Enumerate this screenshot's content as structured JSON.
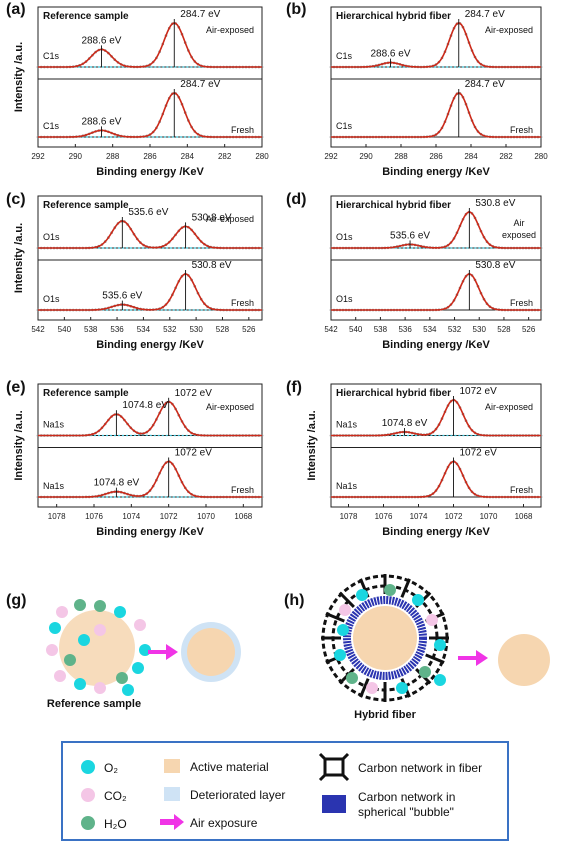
{
  "chart_data": [
    {
      "panel": "(a)",
      "type": "line",
      "title": "Reference sample",
      "xlabel": "Binding energy /KeV",
      "ylabel": "Intensity /a.u.",
      "xlim": [
        292,
        280
      ],
      "x_ticks": [
        "292",
        "290",
        "288",
        "286",
        "284",
        "282",
        "280"
      ],
      "rows": [
        {
          "element": "C1s",
          "condition": "Air-exposed",
          "peaks": [
            {
              "energy": 288.6,
              "label": "288.6 eV",
              "height": 0.4
            },
            {
              "energy": 284.7,
              "label": "284.7 eV",
              "height": 1.0
            }
          ]
        },
        {
          "element": "C1s",
          "condition": "Fresh",
          "peaks": [
            {
              "energy": 288.6,
              "label": "288.6 eV",
              "height": 0.15
            },
            {
              "energy": 284.7,
              "label": "284.7 eV",
              "height": 1.0
            }
          ]
        }
      ]
    },
    {
      "panel": "(b)",
      "type": "line",
      "title": "Hierarchical hybrid fiber",
      "xlabel": "Binding energy /KeV",
      "ylabel": "",
      "xlim": [
        292,
        280
      ],
      "x_ticks": [
        "292",
        "290",
        "288",
        "286",
        "284",
        "282",
        "280"
      ],
      "rows": [
        {
          "element": "C1s",
          "condition": "Air-exposed",
          "peaks": [
            {
              "energy": 288.6,
              "label": "288.6 eV",
              "height": 0.1
            },
            {
              "energy": 284.7,
              "label": "284.7 eV",
              "height": 1.0
            }
          ]
        },
        {
          "element": "C1s",
          "condition": "Fresh",
          "peaks": [
            {
              "energy": 284.7,
              "label": "284.7 eV",
              "height": 1.0
            }
          ]
        }
      ]
    },
    {
      "panel": "(c)",
      "type": "line",
      "title": "Reference sample",
      "xlabel": "Binding energy /KeV",
      "ylabel": "Intensity /a.u.",
      "xlim": [
        542,
        525
      ],
      "x_ticks": [
        "542",
        "540",
        "538",
        "536",
        "534",
        "532",
        "530",
        "528",
        "526"
      ],
      "rows": [
        {
          "element": "O1s",
          "condition": "Air-exposed",
          "peaks": [
            {
              "energy": 535.6,
              "label": "535.6 eV",
              "height": 0.75
            },
            {
              "energy": 530.8,
              "label": "530.8 eV",
              "height": 0.6
            }
          ]
        },
        {
          "element": "O1s",
          "condition": "Fresh",
          "peaks": [
            {
              "energy": 535.6,
              "label": "535.6 eV",
              "height": 0.15
            },
            {
              "energy": 530.8,
              "label": "530.8 eV",
              "height": 1.0
            }
          ]
        }
      ]
    },
    {
      "panel": "(d)",
      "type": "line",
      "title": "Hierarchical hybrid fiber",
      "xlabel": "Binding energy /KeV",
      "ylabel": "",
      "xlim": [
        542,
        525
      ],
      "x_ticks": [
        "542",
        "540",
        "538",
        "536",
        "534",
        "532",
        "530",
        "528",
        "526"
      ],
      "rows": [
        {
          "element": "O1s",
          "condition": "Air exposed",
          "peaks": [
            {
              "energy": 535.6,
              "label": "535.6 eV",
              "height": 0.1
            },
            {
              "energy": 530.8,
              "label": "530.8 eV",
              "height": 1.0
            }
          ]
        },
        {
          "element": "O1s",
          "condition": "Fresh",
          "peaks": [
            {
              "energy": 530.8,
              "label": "530.8 eV",
              "height": 1.0
            }
          ]
        }
      ]
    },
    {
      "panel": "(e)",
      "type": "line",
      "title": "Reference sample",
      "xlabel": "Binding energy /KeV",
      "ylabel": "Intensity /a.u.",
      "xlim": [
        1079,
        1067
      ],
      "x_ticks": [
        "1078",
        "1076",
        "1074",
        "1072",
        "1070",
        "1068"
      ],
      "rows": [
        {
          "element": "Na1s",
          "condition": "Air-exposed",
          "peaks": [
            {
              "energy": 1074.8,
              "label": "1074.8 eV",
              "height": 0.6
            },
            {
              "energy": 1072,
              "label": "1072 eV",
              "height": 0.95
            }
          ]
        },
        {
          "element": "Na1s",
          "condition": "Fresh",
          "peaks": [
            {
              "energy": 1074.8,
              "label": "1074.8 eV",
              "height": 0.15
            },
            {
              "energy": 1072,
              "label": "1072 eV",
              "height": 1.0
            }
          ]
        }
      ]
    },
    {
      "panel": "(f)",
      "type": "line",
      "title": "Hierarchical hybrid fiber",
      "xlabel": "Binding energy /KeV",
      "ylabel": "Intensity /a.u.",
      "xlim": [
        1079,
        1067
      ],
      "x_ticks": [
        "1078",
        "1076",
        "1074",
        "1072",
        "1070",
        "1068"
      ],
      "rows": [
        {
          "element": "Na1s",
          "condition": "Air-exposed",
          "peaks": [
            {
              "energy": 1074.8,
              "label": "1074.8 eV",
              "height": 0.1
            },
            {
              "energy": 1072,
              "label": "1072 eV",
              "height": 1.0
            }
          ]
        },
        {
          "element": "Na1s",
          "condition": "Fresh",
          "peaks": [
            {
              "energy": 1072,
              "label": "1072 eV",
              "height": 1.0
            }
          ]
        }
      ]
    }
  ],
  "schematic": {
    "g": {
      "panel": "(g)",
      "caption": "Reference sample"
    },
    "h": {
      "panel": "(h)",
      "caption": "Hybrid fiber"
    }
  },
  "legend": {
    "o2": "O₂",
    "co2": "CO₂",
    "h2o": "H₂O",
    "active": "Active material",
    "deteriorated": "Deteriorated layer",
    "air": "Air exposure",
    "carbon_fiber": "Carbon network in fiber",
    "carbon_bubble_1": "Carbon network in",
    "carbon_bubble_2": "spherical \"bubble\""
  },
  "colors": {
    "fit": "#cc2a1a",
    "data": "#8a8a8a",
    "component": "#3cc3d8",
    "o2": "#1ad6e0",
    "co2": "#f4c6e6",
    "h2o": "#5fb38a",
    "active": "#f6d6b0",
    "arrow": "#f034e6",
    "bubble": "#2a34b0",
    "legend_border": "#3a72c4"
  }
}
